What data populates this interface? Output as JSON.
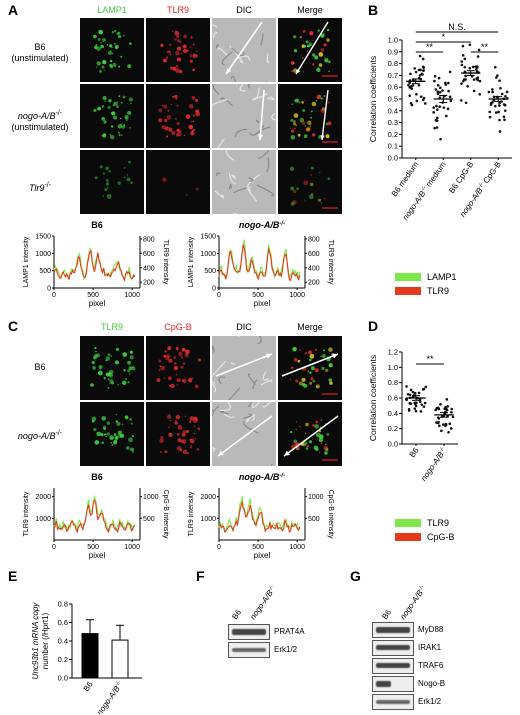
{
  "panel_letters": {
    "A": "A",
    "B": "B",
    "C": "C",
    "D": "D",
    "E": "E",
    "F": "F",
    "G": "G"
  },
  "panelA": {
    "headers": [
      "LAMP1",
      "TLR9",
      "DIC",
      "Merge"
    ],
    "header_colors": [
      "#3cc83c",
      "#e02020",
      "#000000",
      "#000000"
    ],
    "rows": [
      {
        "label_line1": "B6",
        "label_line2": "(unstimulated)"
      },
      {
        "label_line1": "nogo-A/B",
        "label_sup": "-/-",
        "label_line2": "(unstimulated)"
      },
      {
        "label_line1": "Tlr9",
        "label_sup": "-/-",
        "label_line2": ""
      }
    ],
    "profiles": [
      {
        "title": "B6",
        "title_italic": false,
        "ylabel_left": "LAMP1 intensity",
        "ylabel_right": "TLR9 intensity",
        "left_ticks": [
          "0",
          "500",
          "1000",
          "1500"
        ],
        "right_ticks": [
          "200",
          "400",
          "600",
          "800"
        ],
        "x_ticks": [
          "0",
          "500",
          "1000"
        ],
        "xlabel": "pixel"
      },
      {
        "title": "nogo-A/B",
        "title_sup": "-/-",
        "title_italic": true,
        "ylabel_left": "LAMP1 intensity",
        "ylabel_right": "TLR9 intensity",
        "left_ticks": [
          "0",
          "500",
          "1000",
          "1500"
        ],
        "right_ticks": [
          "200",
          "400",
          "600",
          "800"
        ],
        "x_ticks": [
          "0",
          "500",
          "1000"
        ],
        "xlabel": "pixel"
      }
    ],
    "legend": [
      {
        "label": "LAMP1",
        "color": "#7ee84a"
      },
      {
        "label": "TLR9",
        "color": "#e23a1a"
      }
    ]
  },
  "panelB": {
    "ylabel": "Correlation coefficients",
    "y_ticks": [
      "0.0",
      "0.1",
      "0.2",
      "0.3",
      "0.4",
      "0.5",
      "0.6",
      "0.7",
      "0.8",
      "0.9",
      "1.0"
    ],
    "groups": [
      {
        "label": "B6 medium"
      },
      {
        "label": "nogo-A/B",
        "sup": "-/-",
        "suffix": " medium"
      },
      {
        "label": "B6 CpG-B"
      },
      {
        "label": "nogo-A/B",
        "sup": "-/-",
        "suffix": " CpG-B"
      }
    ],
    "sig": [
      {
        "text": "N.S."
      },
      {
        "text": "*"
      },
      {
        "text": "**"
      },
      {
        "text": "**"
      }
    ]
  },
  "panelC": {
    "headers": [
      "TLR9",
      "CpG-B",
      "DIC",
      "Merge"
    ],
    "header_colors": [
      "#3cc83c",
      "#e02020",
      "#000000",
      "#000000"
    ],
    "rows": [
      {
        "label_line1": "B6"
      },
      {
        "label_line1": "nogo-A/B",
        "label_sup": "-/-"
      }
    ],
    "profiles": [
      {
        "title": "B6",
        "title_italic": false,
        "ylabel_left": "TLR9 intensity",
        "ylabel_right": "CpG-B intensity",
        "left_ticks": [
          "1000",
          "2000"
        ],
        "right_ticks": [
          "500",
          "1000"
        ],
        "x_ticks": [
          "0",
          "500",
          "1000"
        ],
        "xlabel": "pixel"
      },
      {
        "title": "nogo-A/B",
        "title_sup": "-/-",
        "title_italic": true,
        "ylabel_left": "TLR9 intensity",
        "ylabel_right": "CpG-B intensity",
        "left_ticks": [
          "1000",
          "2000"
        ],
        "right_ticks": [
          "500",
          "1000"
        ],
        "x_ticks": [
          "0",
          "500",
          "1000"
        ],
        "xlabel": "pixel"
      }
    ],
    "legend": [
      {
        "label": "TLR9",
        "color": "#7ee84a"
      },
      {
        "label": "CpG-B",
        "color": "#e23a1a"
      }
    ]
  },
  "panelD": {
    "ylabel": "Correlation coefficients",
    "y_ticks": [
      "0.0",
      "0.2",
      "0.4",
      "0.6",
      "0.8",
      "1.0",
      "1.2"
    ],
    "groups": [
      {
        "label": "B6"
      },
      {
        "label": "nogo-A/B",
        "sup": "-/-"
      }
    ],
    "sig": "**"
  },
  "panelE": {
    "ylabel_line1": "Unc93b1 mRNA copy",
    "ylabel_line2": "number (/Hprt1)",
    "y_ticks": [
      "0.0",
      "0.2",
      "0.4",
      "0.6",
      "0.8"
    ],
    "groups": [
      {
        "label": "B6"
      },
      {
        "label": "nogo-A/B",
        "sup": "-/-"
      }
    ]
  },
  "panelF": {
    "lanes": [
      {
        "label": "B6"
      },
      {
        "label": "nogo-A/B",
        "sup": "-/-"
      }
    ],
    "bands": [
      "PRAT4A",
      "Erk1/2"
    ]
  },
  "panelG": {
    "lanes": [
      {
        "label": "B6"
      },
      {
        "label": "nogo-A/B",
        "sup": "-/-"
      }
    ],
    "bands": [
      "MyD88",
      "IRAK1",
      "TRAF6",
      "Nogo-B",
      "Erk1/2"
    ]
  },
  "chart_data": [
    {
      "type": "scatter",
      "title": "",
      "ylabel": "Correlation coefficients",
      "ylim": [
        0,
        1.0
      ],
      "categories": [
        "B6 medium",
        "nogo-A/B-/- medium",
        "B6 CpG-B",
        "nogo-A/B-/- CpG-B"
      ],
      "means": [
        0.65,
        0.5,
        0.72,
        0.5
      ],
      "sem": [
        0.02,
        0.03,
        0.02,
        0.02
      ]
    },
    {
      "type": "scatter",
      "title": "",
      "ylabel": "Correlation coefficients",
      "ylim": [
        0,
        1.2
      ],
      "categories": [
        "B6",
        "nogo-A/B-/-"
      ],
      "means": [
        0.6,
        0.38
      ],
      "sem": [
        0.03,
        0.03
      ]
    },
    {
      "type": "bar",
      "title": "",
      "ylabel": "Unc93b1 mRNA copy number (/Hprt1)",
      "ylim": [
        0,
        0.8
      ],
      "categories": [
        "B6",
        "nogo-A/B-/-"
      ],
      "values": [
        0.48,
        0.41
      ],
      "errors": [
        0.15,
        0.16
      ]
    }
  ]
}
